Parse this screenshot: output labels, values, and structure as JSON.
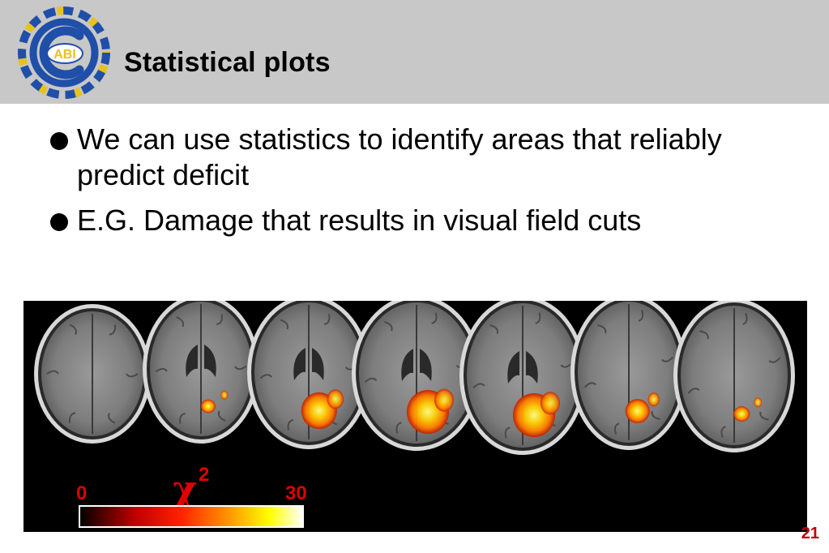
{
  "slide": {
    "logo_text": "ABI",
    "title": "Statistical plots",
    "bullets": [
      "We can use statistics to identify areas that reliably predict deficit",
      "E.G. Damage that results in visual field cuts"
    ],
    "page_number": "21"
  },
  "figure": {
    "colorbar_min": "0",
    "colorbar_max": "30",
    "colorbar_symbol": "χ",
    "colorbar_superscript": "2",
    "colorbar_colors": [
      "#000000",
      "#c00000",
      "#ff2000",
      "#ff8c00",
      "#ffff00",
      "#ffffff"
    ],
    "slices": [
      {
        "label": "slice-1",
        "activation": 0.0
      },
      {
        "label": "slice-2",
        "activation": 0.15
      },
      {
        "label": "slice-3",
        "activation": 0.8
      },
      {
        "label": "slice-4",
        "activation": 1.0
      },
      {
        "label": "slice-5",
        "activation": 1.0
      },
      {
        "label": "slice-6",
        "activation": 0.45
      },
      {
        "label": "slice-7",
        "activation": 0.2
      }
    ]
  }
}
